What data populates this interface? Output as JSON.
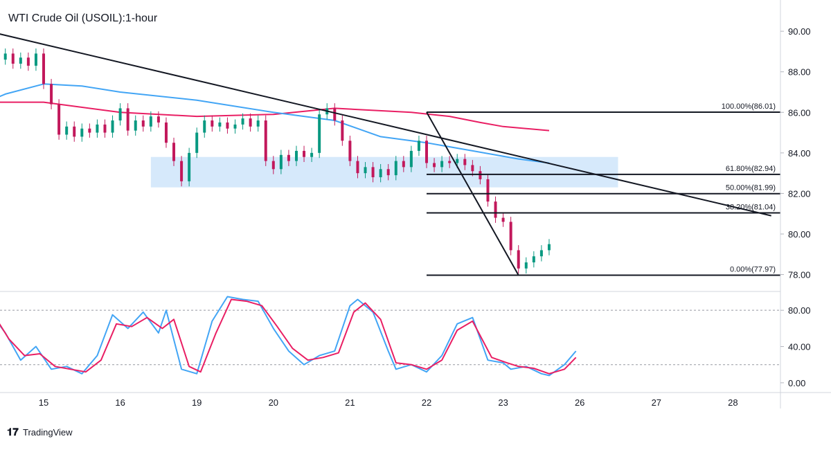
{
  "brand": {
    "name": "TradingView"
  },
  "chart_data": [
    {
      "type": "candlestick",
      "title": "WTI Crude Oil (USOIL):1-hour",
      "ylim": [
        77.2,
        91.2
      ],
      "yticks": [
        78,
        80,
        82,
        84,
        86,
        88,
        90
      ],
      "ytick_labels": [
        "78.00",
        "80.00",
        "82.00",
        "84.00",
        "86.00",
        "88.00",
        "90.00"
      ],
      "x_labels": [
        "15",
        "16",
        "19",
        "20",
        "21",
        "22",
        "23",
        "26",
        "27",
        "28"
      ],
      "grid": true,
      "colors": {
        "up": "#089981",
        "down": "#c2185b",
        "ema_long": "#e91e63",
        "ema_short": "#42a5f5",
        "support_zone": "#d6e9fb",
        "line": "#131722"
      },
      "price_path": [
        [
          0.0,
          86.7
        ],
        [
          0.05,
          88.8
        ],
        [
          0.12,
          89.6
        ],
        [
          0.2,
          90.0
        ],
        [
          0.3,
          89.4
        ],
        [
          0.4,
          88.6
        ],
        [
          0.5,
          88.9
        ],
        [
          0.6,
          88.4
        ],
        [
          0.7,
          88.7
        ],
        [
          0.8,
          88.3
        ],
        [
          0.9,
          88.9
        ],
        [
          1.0,
          87.4
        ],
        [
          1.1,
          86.4
        ],
        [
          1.2,
          84.9
        ],
        [
          1.3,
          85.3
        ],
        [
          1.4,
          84.8
        ],
        [
          1.5,
          85.2
        ],
        [
          1.6,
          85.0
        ],
        [
          1.7,
          85.4
        ],
        [
          1.8,
          85.0
        ],
        [
          1.9,
          85.6
        ],
        [
          2.0,
          86.2
        ],
        [
          2.1,
          85.1
        ],
        [
          2.2,
          85.6
        ],
        [
          2.3,
          85.3
        ],
        [
          2.4,
          85.8
        ],
        [
          2.5,
          85.5
        ],
        [
          2.6,
          84.5
        ],
        [
          2.7,
          83.6
        ],
        [
          2.8,
          82.6
        ],
        [
          2.9,
          84.0
        ],
        [
          3.0,
          85.0
        ],
        [
          3.1,
          85.6
        ],
        [
          3.2,
          85.3
        ],
        [
          3.3,
          85.5
        ],
        [
          3.4,
          85.2
        ],
        [
          3.5,
          85.4
        ],
        [
          3.6,
          85.7
        ],
        [
          3.7,
          85.3
        ],
        [
          3.8,
          85.6
        ],
        [
          3.9,
          83.6
        ],
        [
          4.0,
          83.2
        ],
        [
          4.1,
          83.9
        ],
        [
          4.2,
          83.6
        ],
        [
          4.3,
          84.1
        ],
        [
          4.4,
          83.8
        ],
        [
          4.5,
          84.0
        ],
        [
          4.6,
          85.9
        ],
        [
          4.7,
          86.2
        ],
        [
          4.8,
          85.6
        ],
        [
          4.9,
          84.6
        ],
        [
          5.0,
          83.6
        ],
        [
          5.1,
          83.0
        ],
        [
          5.2,
          83.3
        ],
        [
          5.3,
          82.8
        ],
        [
          5.4,
          83.2
        ],
        [
          5.5,
          82.9
        ],
        [
          5.6,
          83.6
        ],
        [
          5.7,
          83.3
        ],
        [
          5.8,
          84.1
        ],
        [
          5.9,
          84.6
        ],
        [
          6.0,
          83.5
        ],
        [
          6.1,
          83.3
        ],
        [
          6.2,
          83.6
        ],
        [
          6.3,
          83.5
        ],
        [
          6.4,
          83.7
        ],
        [
          6.5,
          83.4
        ],
        [
          6.6,
          83.1
        ],
        [
          6.7,
          82.7
        ],
        [
          6.8,
          81.6
        ],
        [
          6.9,
          80.8
        ],
        [
          7.0,
          80.6
        ],
        [
          7.1,
          79.2
        ],
        [
          7.2,
          78.3
        ],
        [
          7.3,
          78.6
        ],
        [
          7.4,
          78.9
        ],
        [
          7.5,
          79.2
        ],
        [
          7.6,
          79.5
        ]
      ],
      "series": [
        {
          "kind": "ema_long",
          "points": [
            [
              0.0,
              86.5
            ],
            [
              1.0,
              86.5
            ],
            [
              2.0,
              86.0
            ],
            [
              3.0,
              85.8
            ],
            [
              4.0,
              85.9
            ],
            [
              4.8,
              86.2
            ],
            [
              5.8,
              86.0
            ],
            [
              6.3,
              85.8
            ],
            [
              6.7,
              85.5
            ],
            [
              7.0,
              85.3
            ],
            [
              7.6,
              85.1
            ]
          ]
        },
        {
          "kind": "ema_short",
          "points": [
            [
              0.0,
              86.1
            ],
            [
              0.5,
              86.9
            ],
            [
              1.0,
              87.4
            ],
            [
              1.5,
              87.3
            ],
            [
              2.0,
              87.0
            ],
            [
              3.0,
              86.6
            ],
            [
              4.0,
              86.0
            ],
            [
              4.8,
              85.6
            ],
            [
              5.4,
              84.8
            ],
            [
              6.0,
              84.5
            ],
            [
              6.6,
              84.1
            ],
            [
              7.2,
              83.7
            ],
            [
              7.6,
              83.5
            ]
          ]
        }
      ],
      "trendline": {
        "from": [
          0.05,
          90.2
        ],
        "to": [
          10.5,
          80.9
        ]
      },
      "drop_line": {
        "from": [
          6.0,
          86.01
        ],
        "to": [
          7.2,
          77.97
        ]
      },
      "support_zone": {
        "x_from": 2.4,
        "x_to": 8.5,
        "y_from": 82.3,
        "y_to": 83.8
      },
      "fib_levels": [
        {
          "label": "100.00%(86.01)",
          "value": 86.01
        },
        {
          "label": "61.80%(82.94)",
          "value": 82.94
        },
        {
          "label": "50.00%(81.99)",
          "value": 81.99
        },
        {
          "label": "38.20%(81.04)",
          "value": 81.04
        },
        {
          "label": "0.00%(77.97)",
          "value": 77.97
        }
      ],
      "fib_x_from": 6.0
    },
    {
      "type": "line",
      "title": "",
      "ylim": [
        -10,
        100
      ],
      "yticks": [
        0,
        40,
        80
      ],
      "ytick_labels": [
        "0.00",
        "40.00",
        "80.00"
      ],
      "reference_lines": [
        20,
        80
      ],
      "colors": {
        "k": "#42a5f5",
        "d": "#e91e63"
      },
      "series": [
        {
          "kind": "k",
          "points": [
            [
              0.0,
              75
            ],
            [
              0.1,
              88
            ],
            [
              0.3,
              78
            ],
            [
              0.5,
              55
            ],
            [
              0.7,
              25
            ],
            [
              0.9,
              40
            ],
            [
              1.1,
              15
            ],
            [
              1.3,
              18
            ],
            [
              1.5,
              10
            ],
            [
              1.7,
              30
            ],
            [
              1.9,
              75
            ],
            [
              2.1,
              60
            ],
            [
              2.3,
              78
            ],
            [
              2.5,
              55
            ],
            [
              2.6,
              80
            ],
            [
              2.8,
              15
            ],
            [
              3.0,
              10
            ],
            [
              3.2,
              68
            ],
            [
              3.4,
              95
            ],
            [
              3.6,
              92
            ],
            [
              3.8,
              90
            ],
            [
              4.0,
              60
            ],
            [
              4.2,
              35
            ],
            [
              4.4,
              20
            ],
            [
              4.6,
              30
            ],
            [
              4.8,
              35
            ],
            [
              5.0,
              85
            ],
            [
              5.1,
              92
            ],
            [
              5.3,
              78
            ],
            [
              5.5,
              35
            ],
            [
              5.6,
              15
            ],
            [
              5.8,
              20
            ],
            [
              6.0,
              12
            ],
            [
              6.2,
              30
            ],
            [
              6.4,
              65
            ],
            [
              6.6,
              72
            ],
            [
              6.8,
              25
            ],
            [
              7.0,
              22
            ],
            [
              7.1,
              15
            ],
            [
              7.3,
              18
            ],
            [
              7.5,
              10
            ],
            [
              7.6,
              8
            ],
            [
              7.8,
              20
            ],
            [
              7.95,
              35
            ]
          ]
        },
        {
          "kind": "d",
          "points": [
            [
              0.0,
              78
            ],
            [
              0.15,
              85
            ],
            [
              0.35,
              75
            ],
            [
              0.55,
              48
            ],
            [
              0.75,
              30
            ],
            [
              0.95,
              32
            ],
            [
              1.15,
              18
            ],
            [
              1.35,
              15
            ],
            [
              1.55,
              12
            ],
            [
              1.75,
              25
            ],
            [
              1.95,
              65
            ],
            [
              2.15,
              62
            ],
            [
              2.35,
              72
            ],
            [
              2.55,
              60
            ],
            [
              2.7,
              70
            ],
            [
              2.9,
              18
            ],
            [
              3.05,
              12
            ],
            [
              3.25,
              55
            ],
            [
              3.45,
              92
            ],
            [
              3.65,
              90
            ],
            [
              3.85,
              85
            ],
            [
              4.05,
              62
            ],
            [
              4.25,
              38
            ],
            [
              4.45,
              25
            ],
            [
              4.65,
              28
            ],
            [
              4.85,
              33
            ],
            [
              5.05,
              78
            ],
            [
              5.2,
              88
            ],
            [
              5.4,
              70
            ],
            [
              5.6,
              22
            ],
            [
              5.8,
              20
            ],
            [
              6.0,
              15
            ],
            [
              6.2,
              25
            ],
            [
              6.4,
              58
            ],
            [
              6.6,
              68
            ],
            [
              6.85,
              28
            ],
            [
              7.05,
              22
            ],
            [
              7.2,
              18
            ],
            [
              7.4,
              16
            ],
            [
              7.6,
              10
            ],
            [
              7.8,
              15
            ],
            [
              7.95,
              28
            ]
          ]
        }
      ]
    }
  ]
}
